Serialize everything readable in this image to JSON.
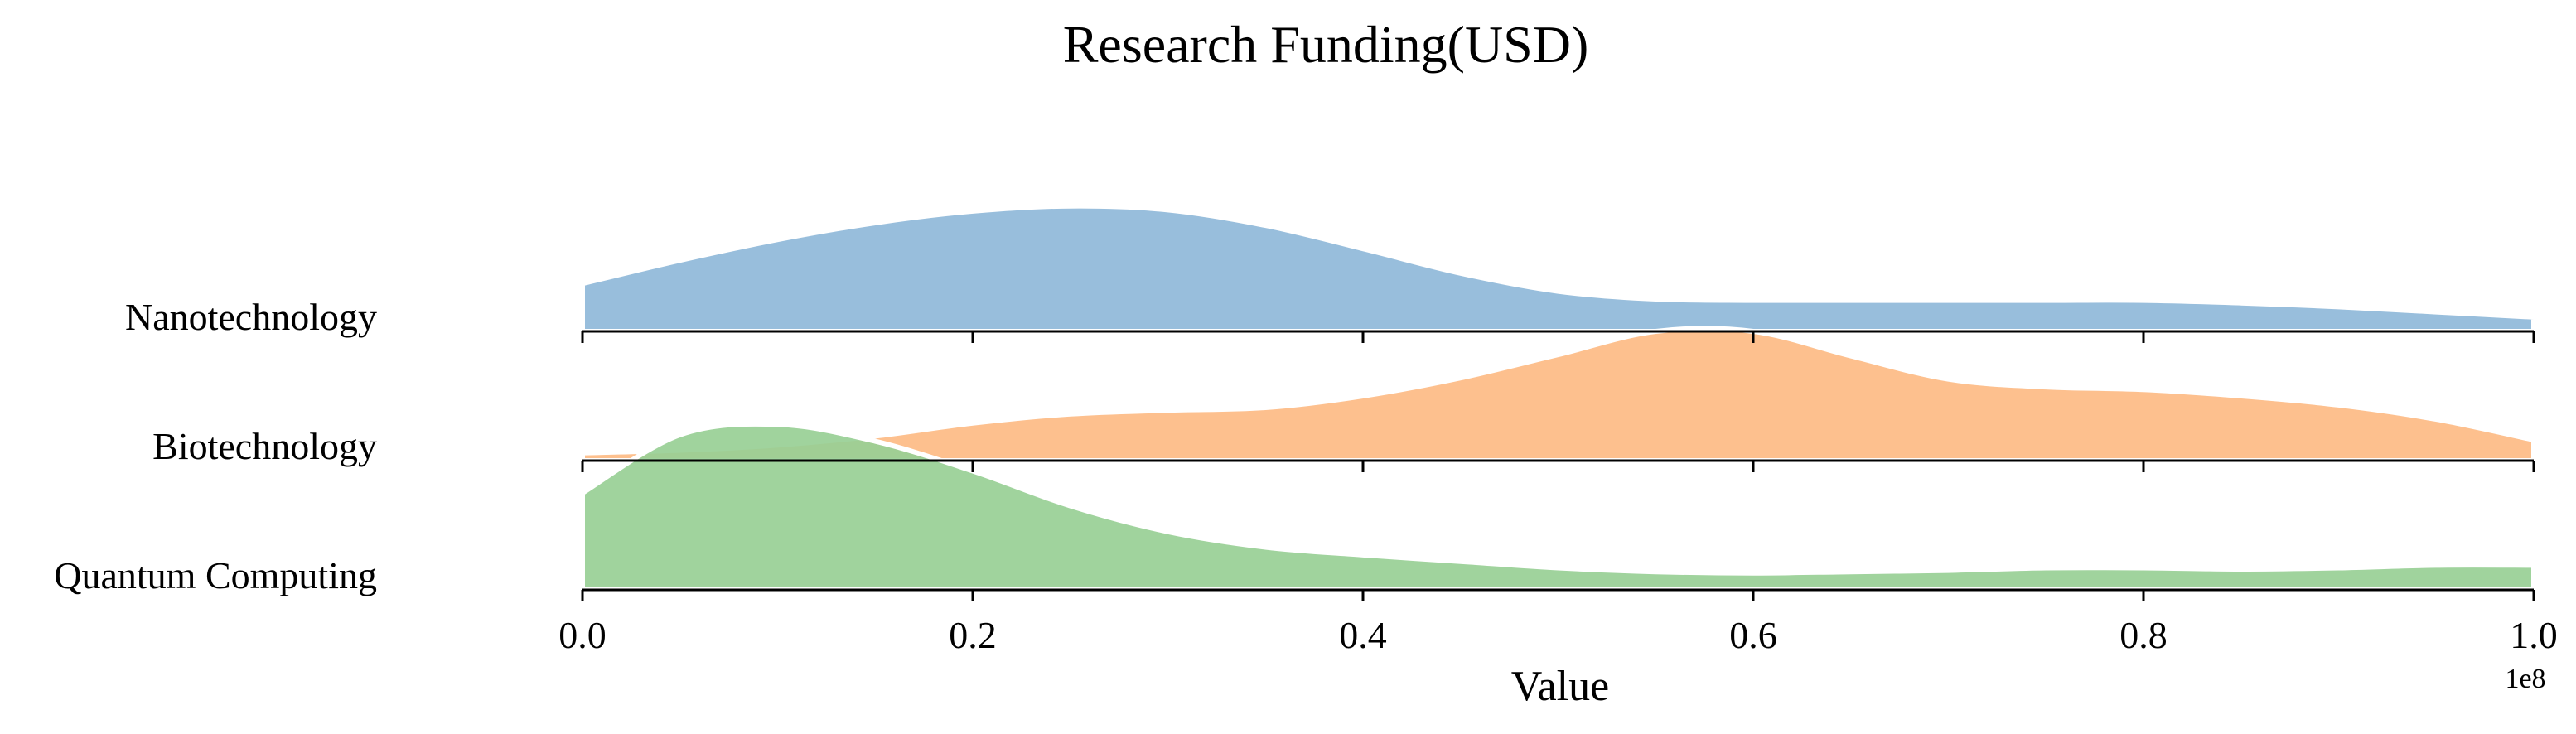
{
  "chart_data": {
    "type": "ridgeline",
    "title": "Research Funding(USD)",
    "xlabel": "Value",
    "x_offset_label": "1e8",
    "xlim": [
      0,
      1.0
    ],
    "xticks": [
      0.0,
      0.2,
      0.4,
      0.6,
      0.8,
      1.0
    ],
    "xtick_labels": [
      "0.0",
      "0.2",
      "0.4",
      "0.6",
      "0.8",
      "1.0"
    ],
    "categories": [
      "Nanotechnology",
      "Biotechnology",
      "Quantum Computing"
    ],
    "series": [
      {
        "name": "Nanotechnology",
        "color": "#8fb9d9",
        "x": [
          0.0,
          0.05,
          0.1,
          0.15,
          0.2,
          0.25,
          0.3,
          0.35,
          0.4,
          0.45,
          0.5,
          0.55,
          0.6,
          0.65,
          0.7,
          0.75,
          0.8,
          0.85,
          0.9,
          0.95,
          1.0
        ],
        "y": [
          0.37,
          0.55,
          0.71,
          0.84,
          0.93,
          0.97,
          0.94,
          0.82,
          0.64,
          0.45,
          0.31,
          0.25,
          0.24,
          0.24,
          0.24,
          0.24,
          0.24,
          0.22,
          0.19,
          0.15,
          0.11
        ]
      },
      {
        "name": "Biotechnology",
        "color": "#fdbb84",
        "x": [
          0.0,
          0.05,
          0.1,
          0.15,
          0.2,
          0.25,
          0.3,
          0.35,
          0.4,
          0.45,
          0.5,
          0.55,
          0.6,
          0.65,
          0.7,
          0.75,
          0.8,
          0.85,
          0.9,
          0.95,
          1.0
        ],
        "y": [
          0.06,
          0.08,
          0.12,
          0.19,
          0.29,
          0.36,
          0.39,
          0.41,
          0.5,
          0.64,
          0.82,
          1.0,
          1.0,
          0.81,
          0.63,
          0.57,
          0.55,
          0.5,
          0.43,
          0.32,
          0.16
        ]
      },
      {
        "name": "Quantum Computing",
        "color": "#98cf95",
        "x": [
          0.0,
          0.05,
          0.1,
          0.15,
          0.2,
          0.25,
          0.3,
          0.35,
          0.4,
          0.45,
          0.5,
          0.55,
          0.6,
          0.65,
          0.7,
          0.75,
          0.8,
          0.85,
          0.9,
          0.95,
          1.0
        ],
        "y": [
          0.75,
          1.2,
          1.28,
          1.15,
          0.92,
          0.65,
          0.45,
          0.33,
          0.27,
          0.22,
          0.17,
          0.14,
          0.13,
          0.14,
          0.15,
          0.17,
          0.17,
          0.16,
          0.17,
          0.19,
          0.19
        ]
      }
    ]
  }
}
